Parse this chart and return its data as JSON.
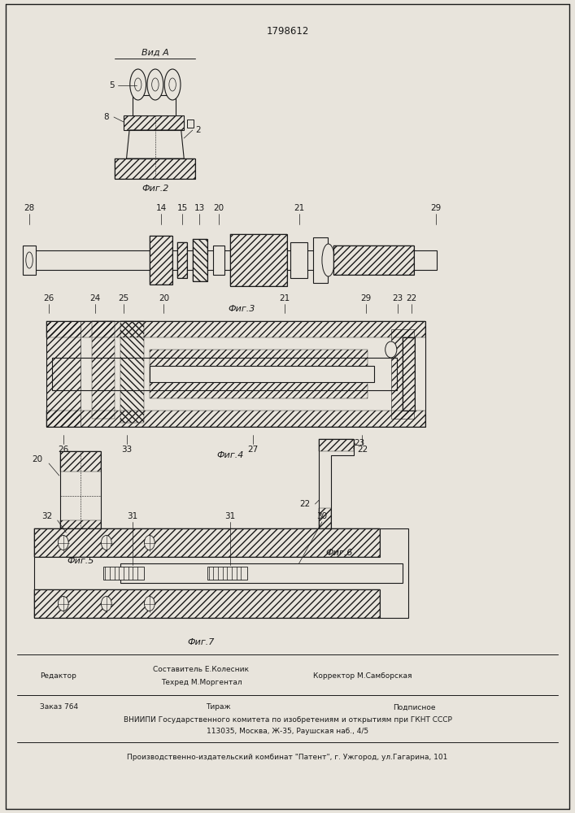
{
  "patent_number": "1798612",
  "background_color": "#e8e4dc",
  "line_color": "#1a1a1a",
  "fig2_label": "Фиг.2",
  "fig2_view_label": "Вид А",
  "fig3_label": "Фиг.3",
  "fig4_label": "Фиг.4",
  "fig5_label": "Фиг.5",
  "fig6_label": "Фиг.6",
  "fig7_label": "Фиг.7",
  "footer_line1": "Составитель Е.Колесник",
  "footer_line2": "Техред М.Моргентал",
  "footer_line3": "Корректор М.Самборская",
  "footer_editor": "Редактор",
  "footer_zakaz": "Заказ 764",
  "footer_tirazh": "Тираж",
  "footer_podpisnoe": "Подписное",
  "footer_vniipи": "ВНИИПИ Государственного комитета по изобретениям и открытиям при ГКНТ СССР",
  "footer_address": "113035, Москва, Ж-35, Раушская наб., 4/5",
  "footer_production": "Производственно-издательский комбинат \"Патент\", г. Ужгород, ул.Гагарина, 101"
}
